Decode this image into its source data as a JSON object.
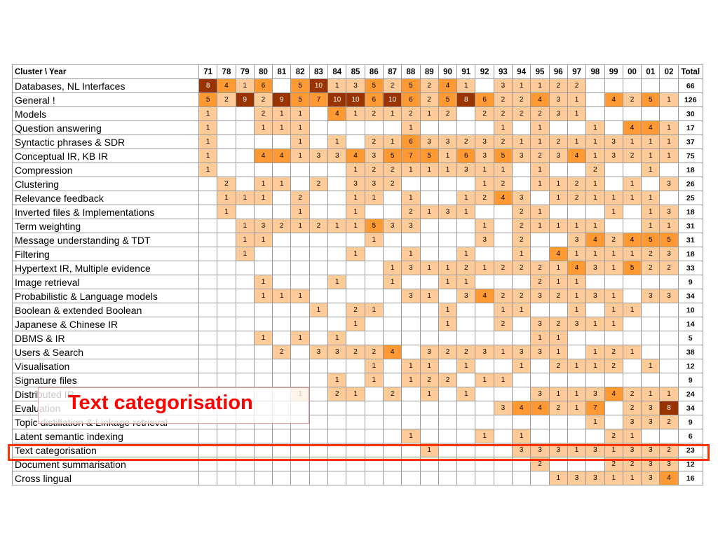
{
  "table": {
    "corner_label": "Cluster \\ Year",
    "total_label": "Total",
    "years": [
      "71",
      "78",
      "79",
      "80",
      "81",
      "82",
      "83",
      "84",
      "85",
      "86",
      "87",
      "88",
      "89",
      "90",
      "91",
      "92",
      "93",
      "94",
      "95",
      "96",
      "97",
      "98",
      "99",
      "00",
      "01",
      "02"
    ],
    "rows": [
      {
        "name": "Databases, NL Interfaces",
        "cells": [
          "8",
          "4",
          "1",
          "6",
          "",
          "5",
          "10",
          "1",
          "3",
          "5",
          "2",
          "5",
          "2",
          "4",
          "1",
          "",
          "3",
          "1",
          "1",
          "2",
          "2",
          "",
          "",
          "",
          "",
          ""
        ],
        "total": "66"
      },
      {
        "name": "General !",
        "cells": [
          "5",
          "2",
          "9",
          "2",
          "9",
          "5",
          "7",
          "10",
          "10",
          "6",
          "10",
          "6",
          "2",
          "5",
          "8",
          "6",
          "2",
          "2",
          "4",
          "3",
          "1",
          "",
          "4",
          "2",
          "5",
          "1"
        ],
        "total": "126"
      },
      {
        "name": "Models",
        "cells": [
          "1",
          "",
          "",
          "2",
          "1",
          "1",
          "",
          "4",
          "1",
          "2",
          "1",
          "2",
          "1",
          "2",
          "",
          "2",
          "2",
          "2",
          "2",
          "3",
          "1",
          "",
          "",
          "",
          "",
          ""
        ],
        "total": "30"
      },
      {
        "name": "Question answering",
        "cells": [
          "1",
          "",
          "",
          "1",
          "1",
          "1",
          "",
          "",
          "",
          "",
          "",
          "1",
          "",
          "",
          "",
          "",
          "1",
          "",
          "1",
          "",
          "",
          "1",
          "",
          "4",
          "4",
          "1"
        ],
        "total": "17"
      },
      {
        "name": "Syntactic phrases & SDR",
        "cells": [
          "1",
          "",
          "",
          "",
          "",
          "1",
          "",
          "1",
          "",
          "2",
          "1",
          "6",
          "3",
          "3",
          "2",
          "3",
          "2",
          "1",
          "1",
          "2",
          "1",
          "1",
          "3",
          "1",
          "1",
          "1"
        ],
        "total": "37"
      },
      {
        "name": "Conceptual IR, KB IR",
        "cells": [
          "1",
          "",
          "",
          "4",
          "4",
          "1",
          "3",
          "3",
          "4",
          "3",
          "5",
          "7",
          "5",
          "1",
          "6",
          "3",
          "5",
          "3",
          "2",
          "3",
          "4",
          "1",
          "3",
          "2",
          "1",
          "1"
        ],
        "total": "75"
      },
      {
        "name": "Compression",
        "cells": [
          "1",
          "",
          "",
          "",
          "",
          "",
          "",
          "",
          "1",
          "2",
          "2",
          "1",
          "1",
          "1",
          "3",
          "1",
          "1",
          "",
          "1",
          "",
          "",
          "2",
          "",
          "",
          "1",
          ""
        ],
        "total": "18"
      },
      {
        "name": "Clustering",
        "cells": [
          "",
          "2",
          "",
          "1",
          "1",
          "",
          "2",
          "",
          "3",
          "3",
          "2",
          "",
          "",
          "",
          "",
          "1",
          "2",
          "",
          "1",
          "1",
          "2",
          "1",
          "",
          "1",
          "",
          "3"
        ],
        "total": "26"
      },
      {
        "name": "Relevance feedback",
        "cells": [
          "",
          "1",
          "1",
          "1",
          "",
          "2",
          "",
          "",
          "1",
          "1",
          "",
          "1",
          "",
          "",
          "1",
          "2",
          "4",
          "3",
          "",
          "1",
          "2",
          "1",
          "1",
          "1",
          "1",
          ""
        ],
        "total": "25"
      },
      {
        "name": "Inverted files & Implementations",
        "cells": [
          "",
          "1",
          "",
          "",
          "",
          "1",
          "",
          "",
          "1",
          "",
          "",
          "2",
          "1",
          "3",
          "1",
          "",
          "",
          "2",
          "1",
          "",
          "",
          "",
          "1",
          "",
          "1",
          "3"
        ],
        "total": "18"
      },
      {
        "name": "Term weighting",
        "cells": [
          "",
          "",
          "1",
          "3",
          "2",
          "1",
          "2",
          "1",
          "1",
          "5",
          "3",
          "3",
          "",
          "",
          "",
          "1",
          "",
          "2",
          "1",
          "1",
          "1",
          "1",
          "",
          "",
          "1",
          "1"
        ],
        "total": "31"
      },
      {
        "name": "Message understanding & TDT",
        "cells": [
          "",
          "",
          "1",
          "1",
          "",
          "",
          "",
          "",
          "",
          "1",
          "",
          "",
          "",
          "",
          "",
          "3",
          "",
          "2",
          "",
          "",
          "3",
          "4",
          "2",
          "4",
          "5",
          "5"
        ],
        "total": "31"
      },
      {
        "name": "Filtering",
        "cells": [
          "",
          "",
          "1",
          "",
          "",
          "",
          "",
          "",
          "1",
          "",
          "",
          "1",
          "",
          "",
          "1",
          "",
          "",
          "1",
          "",
          "4",
          "1",
          "1",
          "1",
          "1",
          "2",
          "3"
        ],
        "total": "18"
      },
      {
        "name": "Hypertext IR, Multiple evidence",
        "cells": [
          "",
          "",
          "",
          "",
          "",
          "",
          "",
          "",
          "",
          "",
          "1",
          "3",
          "1",
          "1",
          "2",
          "1",
          "2",
          "2",
          "2",
          "1",
          "4",
          "3",
          "1",
          "5",
          "2",
          "2"
        ],
        "total": "33"
      },
      {
        "name": "Image retrieval",
        "cells": [
          "",
          "",
          "",
          "1",
          "",
          "",
          "",
          "1",
          "",
          "",
          "1",
          "",
          "",
          "1",
          "1",
          "",
          "",
          "",
          "2",
          "1",
          "1",
          "",
          "",
          "",
          "",
          ""
        ],
        "total": "9"
      },
      {
        "name": "Probabilistic & Language models",
        "cells": [
          "",
          "",
          "",
          "1",
          "1",
          "1",
          "",
          "",
          "",
          "",
          "",
          "3",
          "1",
          "",
          "3",
          "4",
          "2",
          "2",
          "3",
          "2",
          "1",
          "3",
          "1",
          "",
          "3",
          "3"
        ],
        "total": "34"
      },
      {
        "name": "Boolean & extended Boolean",
        "cells": [
          "",
          "",
          "",
          "",
          "",
          "",
          "1",
          "",
          "2",
          "1",
          "",
          "",
          "",
          "1",
          "",
          "",
          "1",
          "1",
          "",
          "",
          "1",
          "",
          "1",
          "1",
          "",
          ""
        ],
        "total": "10"
      },
      {
        "name": "Japanese & Chinese IR",
        "cells": [
          "",
          "",
          "",
          "",
          "",
          "",
          "",
          "",
          "1",
          "",
          "",
          "",
          "",
          "1",
          "",
          "",
          "2",
          "",
          "3",
          "2",
          "3",
          "1",
          "1",
          "",
          "",
          ""
        ],
        "total": "14"
      },
      {
        "name": "DBMS & IR",
        "cells": [
          "",
          "",
          "",
          "1",
          "",
          "1",
          "",
          "1",
          "",
          "",
          "",
          "",
          "",
          "",
          "",
          "",
          "",
          "",
          "1",
          "1",
          "",
          "",
          "",
          "",
          "",
          ""
        ],
        "total": "5"
      },
      {
        "name": "Users & Search",
        "cells": [
          "",
          "",
          "",
          "",
          "2",
          "",
          "3",
          "3",
          "2",
          "2",
          "4",
          "",
          "3",
          "2",
          "2",
          "3",
          "1",
          "3",
          "3",
          "1",
          "",
          "1",
          "2",
          "1",
          "",
          ""
        ],
        "total": "38"
      },
      {
        "name": "Visualisation",
        "cells": [
          "",
          "",
          "",
          "",
          "",
          "",
          "",
          "",
          "",
          "1",
          "",
          "1",
          "1",
          "",
          "1",
          "",
          "",
          "1",
          "",
          "2",
          "1",
          "1",
          "2",
          "",
          "1",
          ""
        ],
        "total": "12"
      },
      {
        "name": "Signature files",
        "cells": [
          "",
          "",
          "",
          "",
          "",
          "",
          "",
          "1",
          "",
          "1",
          "",
          "1",
          "2",
          "2",
          "",
          "1",
          "1",
          "",
          "",
          "",
          "",
          "",
          "",
          "",
          "",
          ""
        ],
        "total": "9"
      },
      {
        "name": "Distributed IR",
        "cells": [
          "",
          "",
          "",
          "",
          "",
          "1",
          "",
          "2",
          "1",
          "",
          "2",
          "",
          "1",
          "",
          "1",
          "",
          "",
          "",
          "3",
          "1",
          "1",
          "3",
          "4",
          "2",
          "1",
          "1"
        ],
        "total": "24"
      },
      {
        "name": "Evaluation",
        "cells": [
          "",
          "",
          "",
          "",
          "",
          "",
          "",
          "",
          "",
          "",
          "",
          "",
          "",
          "",
          "",
          "",
          "3",
          "4",
          "4",
          "2",
          "1",
          "7",
          "",
          "2",
          "3",
          "8"
        ],
        "total": "34"
      },
      {
        "name": "Topic distillation & Linkage retrieval",
        "cells": [
          "",
          "",
          "",
          "",
          "",
          "",
          "",
          "",
          "",
          "",
          "",
          "",
          "",
          "",
          "",
          "",
          "",
          "",
          "",
          "",
          "",
          "1",
          "",
          "3",
          "3",
          "2"
        ],
        "total": "9"
      },
      {
        "name": "Latent semantic indexing",
        "cells": [
          "",
          "",
          "",
          "",
          "",
          "",
          "",
          "",
          "",
          "",
          "",
          "1",
          "",
          "",
          "",
          "1",
          "",
          "1",
          "",
          "",
          "",
          "",
          "2",
          "1",
          "",
          ""
        ],
        "total": "6"
      },
      {
        "name": "Text categorisation",
        "cells": [
          "",
          "",
          "",
          "",
          "",
          "",
          "",
          "",
          "",
          "",
          "",
          "",
          "1",
          "",
          "",
          "",
          "",
          "3",
          "3",
          "3",
          "1",
          "3",
          "1",
          "3",
          "3",
          "2"
        ],
        "total": "23"
      },
      {
        "name": "Document summarisation",
        "cells": [
          "",
          "",
          "",
          "",
          "",
          "",
          "",
          "",
          "",
          "",
          "",
          "",
          "",
          "",
          "",
          "",
          "",
          "",
          "2",
          "",
          "",
          "",
          "2",
          "2",
          "3",
          "3"
        ],
        "total": "12"
      },
      {
        "name": "Cross lingual",
        "cells": [
          "",
          "",
          "",
          "",
          "",
          "",
          "",
          "",
          "",
          "",
          "",
          "",
          "",
          "",
          "",
          "",
          "",
          "",
          "",
          "1",
          "3",
          "3",
          "1",
          "1",
          "3",
          "4"
        ],
        "total": "16"
      }
    ]
  },
  "callout": {
    "text": "Text categorisation"
  },
  "colors": {
    "level1": "#ffcc99",
    "level2": "#ff9933",
    "level3": "#993300",
    "highlight": "#ff3300",
    "callout_text": "#ff0000"
  }
}
